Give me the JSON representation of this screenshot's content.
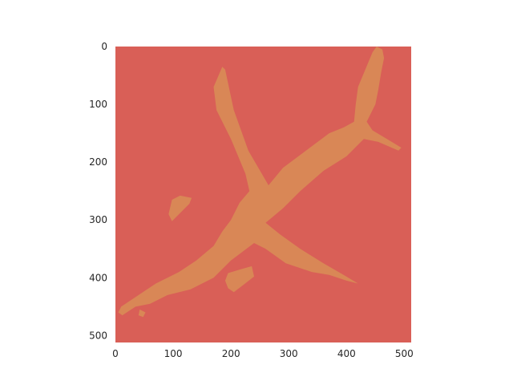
{
  "chart_data": {
    "type": "heatmap",
    "title": "",
    "xlabel": "",
    "ylabel": "",
    "xlim": [
      0,
      512
    ],
    "ylim": [
      512,
      0
    ],
    "x_ticks": [
      "0",
      "100",
      "200",
      "300",
      "400",
      "500"
    ],
    "y_ticks": [
      "0",
      "100",
      "200",
      "300",
      "400",
      "500"
    ],
    "grid": false,
    "colors": {
      "background": "#d95f57",
      "mask": "#d98756"
    },
    "mask_outline": [
      [
        452,
        0
      ],
      [
        445,
        10
      ],
      [
        420,
        70
      ],
      [
        416,
        100
      ],
      [
        413,
        130
      ],
      [
        395,
        140
      ],
      [
        370,
        150
      ],
      [
        330,
        180
      ],
      [
        290,
        210
      ],
      [
        265,
        240
      ],
      [
        230,
        180
      ],
      [
        205,
        110
      ],
      [
        190,
        40
      ],
      [
        185,
        35
      ],
      [
        170,
        70
      ],
      [
        175,
        110
      ],
      [
        200,
        160
      ],
      [
        225,
        220
      ],
      [
        232,
        250
      ],
      [
        215,
        270
      ],
      [
        200,
        300
      ],
      [
        185,
        320
      ],
      [
        170,
        345
      ],
      [
        140,
        370
      ],
      [
        110,
        390
      ],
      [
        70,
        410
      ],
      [
        40,
        430
      ],
      [
        10,
        450
      ],
      [
        5,
        460
      ],
      [
        12,
        465
      ],
      [
        35,
        450
      ],
      [
        60,
        445
      ],
      [
        90,
        430
      ],
      [
        130,
        420
      ],
      [
        150,
        410
      ],
      [
        170,
        400
      ],
      [
        200,
        370
      ],
      [
        240,
        340
      ],
      [
        260,
        350
      ],
      [
        295,
        375
      ],
      [
        340,
        390
      ],
      [
        370,
        395
      ],
      [
        400,
        405
      ],
      [
        420,
        410
      ],
      [
        395,
        395
      ],
      [
        360,
        375
      ],
      [
        320,
        350
      ],
      [
        285,
        325
      ],
      [
        260,
        305
      ],
      [
        290,
        280
      ],
      [
        320,
        250
      ],
      [
        360,
        215
      ],
      [
        400,
        190
      ],
      [
        430,
        160
      ],
      [
        455,
        165
      ],
      [
        490,
        180
      ],
      [
        495,
        175
      ],
      [
        470,
        160
      ],
      [
        445,
        145
      ],
      [
        435,
        130
      ],
      [
        450,
        100
      ],
      [
        455,
        75
      ],
      [
        460,
        45
      ],
      [
        465,
        20
      ],
      [
        462,
        5
      ]
    ],
    "mask_blobs": [
      [
        [
          98,
          265
        ],
        [
          112,
          258
        ],
        [
          132,
          262
        ],
        [
          128,
          272
        ],
        [
          110,
          290
        ],
        [
          98,
          302
        ],
        [
          92,
          290
        ]
      ],
      [
        [
          195,
          392
        ],
        [
          218,
          385
        ],
        [
          236,
          380
        ],
        [
          240,
          398
        ],
        [
          222,
          412
        ],
        [
          205,
          425
        ],
        [
          195,
          418
        ],
        [
          190,
          405
        ]
      ],
      [
        [
          42,
          455
        ],
        [
          52,
          460
        ],
        [
          48,
          468
        ],
        [
          40,
          465
        ]
      ]
    ]
  }
}
